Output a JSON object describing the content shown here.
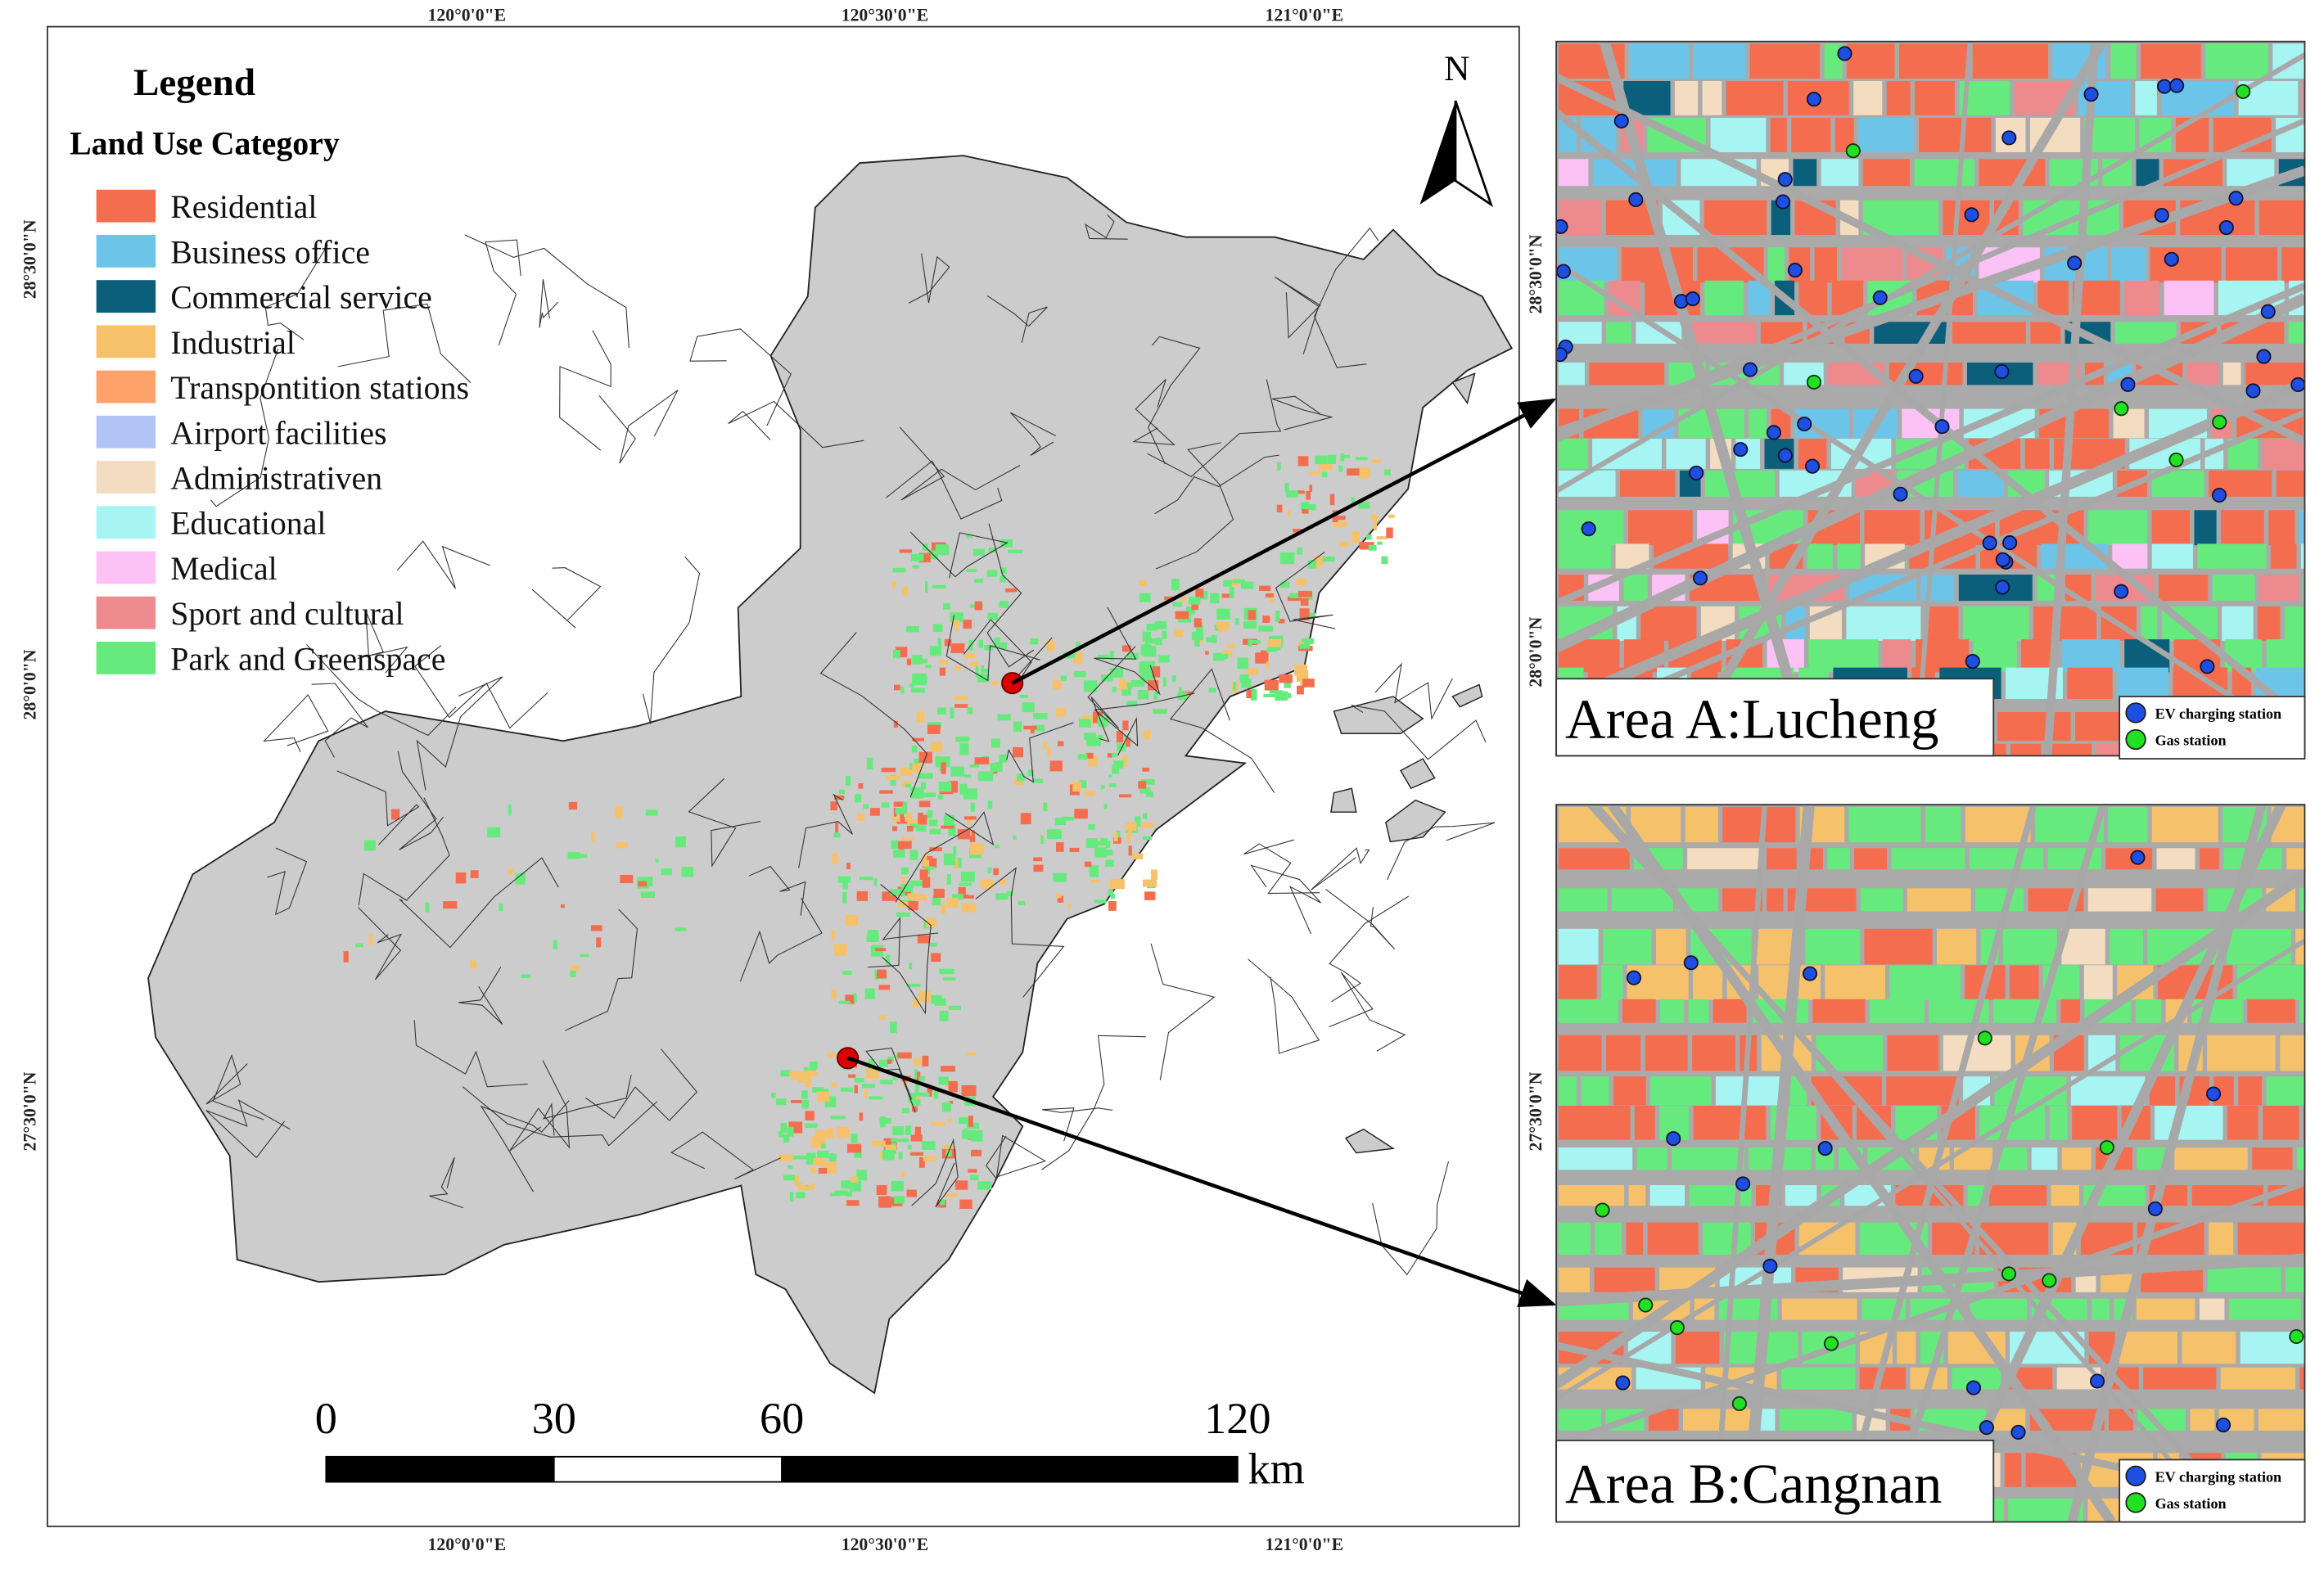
{
  "legend": {
    "title": "Legend",
    "subtitle": "Land Use Category",
    "items": [
      {
        "label": "Residential",
        "color": "#f46d4f"
      },
      {
        "label": "Business office",
        "color": "#6cc5e8"
      },
      {
        "label": "Commercial service",
        "color": "#0b5f7a"
      },
      {
        "label": "Industrial",
        "color": "#f5c26b"
      },
      {
        "label": "Transpontition stations",
        "color": "#fca26a"
      },
      {
        "label": "Airport facilities",
        "color": "#b1c4f5"
      },
      {
        "label": "Administrativen",
        "color": "#f3dcc0"
      },
      {
        "label": "Educational",
        "color": "#a6f5f2"
      },
      {
        "label": "Medical",
        "color": "#fcc2f6"
      },
      {
        "label": "Sport and cultural",
        "color": "#ec8a8d"
      },
      {
        "label": "Park and Greenspace",
        "color": "#66ea7d"
      }
    ]
  },
  "map": {
    "lon_labels": [
      "120°0'0\"E",
      "120°30'0\"E",
      "121°0'0\"E"
    ],
    "lat_labels": [
      "28°30'0\"N",
      "28°0'0\"N",
      "27°30'0\"N"
    ],
    "north": "N",
    "scale_bar": {
      "ticks": [
        0,
        30,
        60,
        120
      ],
      "unit": "km"
    }
  },
  "insets": [
    {
      "title": "Area A:Lucheng",
      "lat_labels": [
        "28°30'0\"N",
        "28°0'0\"N"
      ],
      "legend": [
        {
          "label": "EV charging station",
          "color": "#1f4fe0"
        },
        {
          "label": "Gas station",
          "color": "#22e022"
        }
      ]
    },
    {
      "title": "Area B:Cangnan",
      "lat_labels": [
        "27°30'0\"N"
      ],
      "legend": [
        {
          "label": "EV charging station",
          "color": "#1f4fe0"
        },
        {
          "label": "Gas station",
          "color": "#22e022"
        }
      ]
    }
  ]
}
